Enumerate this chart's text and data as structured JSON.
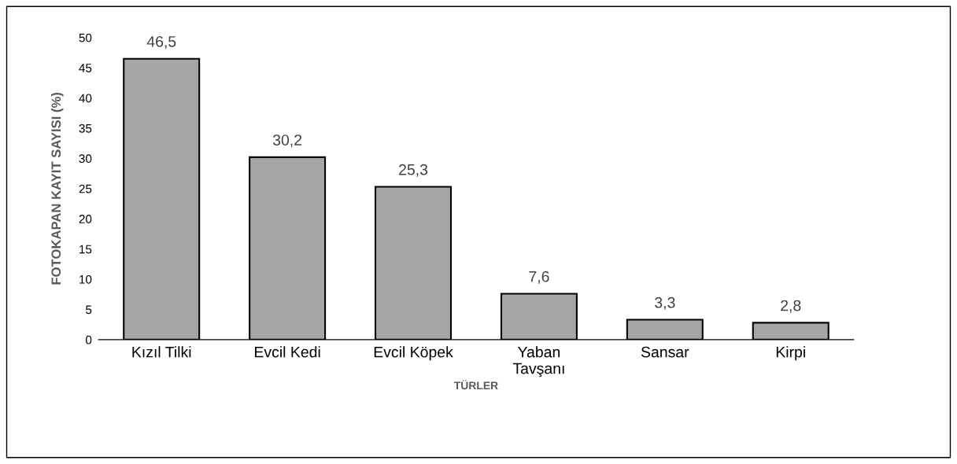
{
  "chart_data": {
    "type": "bar",
    "xlabel": "TÜRLER",
    "ylabel": "FOTOKAPAN KAYIT SAYISI (%)",
    "categories": [
      "Kızıl Tilki",
      "Evcil Kedi",
      "Evcil Köpek",
      "Yaban\nTavşanı",
      "Sansar",
      "Kirpi"
    ],
    "values": [
      46.5,
      30.2,
      25.3,
      7.6,
      3.3,
      2.8
    ],
    "value_labels": [
      "46,5",
      "30,2",
      "25,3",
      "7,6",
      "3,3",
      "2,8"
    ],
    "color": "#a6a6a6",
    "ylim": [
      0,
      50
    ],
    "yticks": [
      0,
      5,
      10,
      15,
      20,
      25,
      30,
      35,
      40,
      45,
      50
    ],
    "grid": false,
    "legend": false
  }
}
